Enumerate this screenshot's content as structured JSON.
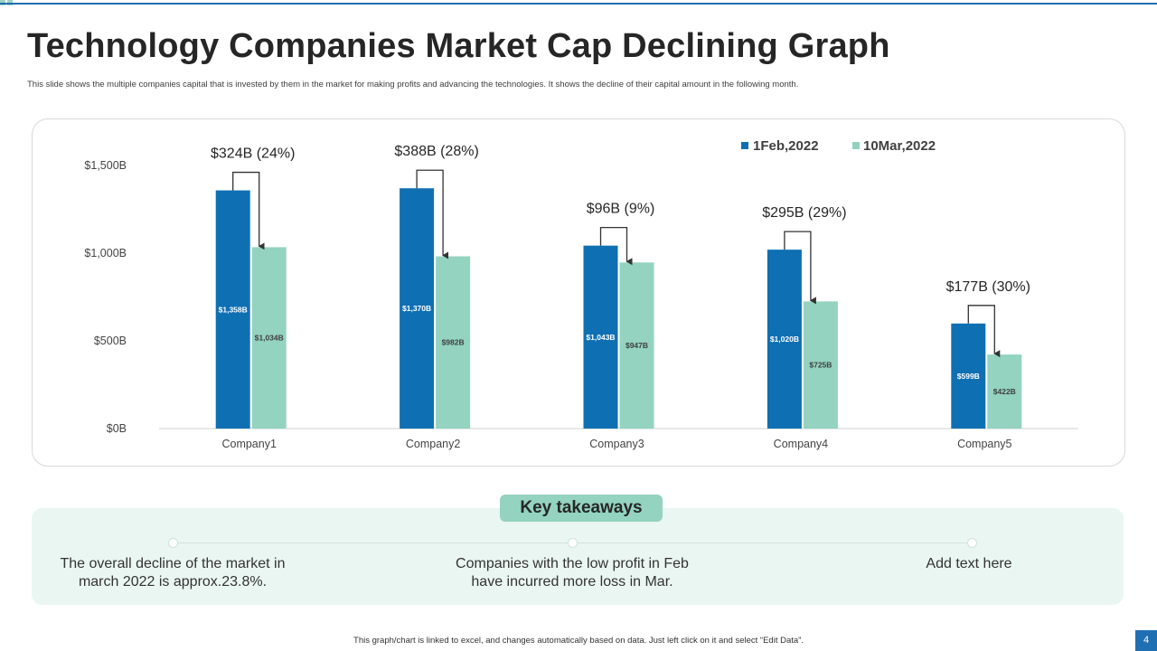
{
  "title": "Technology Companies Market Cap Declining Graph",
  "subtitle": "This slide shows the multiple companies capital that is invested by them in the market for making profits and advancing the technologies. It shows the decline of their capital amount in the following month.",
  "colors": {
    "series1": "#0f6fb3",
    "series2": "#93d3bf",
    "accent": "#1f6fb2",
    "panel": "#eaf6f1"
  },
  "chart_data": {
    "type": "bar",
    "title": "",
    "xlabel": "",
    "ylabel": "",
    "categories": [
      "Company1",
      "Company2",
      "Company3",
      "Company4",
      "Company5"
    ],
    "series": [
      {
        "name": "1Feb,2022",
        "values": [
          1358,
          1370,
          1043,
          1020,
          599
        ],
        "labels": [
          "$1,358B",
          "$1,370B",
          "$1,043B",
          "$1,020B",
          "$599B"
        ]
      },
      {
        "name": "10Mar,2022",
        "values": [
          1034,
          982,
          947,
          725,
          422
        ],
        "labels": [
          "$1,034B",
          "$982B",
          "$947B",
          "$725B",
          "$422B"
        ]
      }
    ],
    "decline_labels": [
      "$324B (24%)",
      "$388B (28%)",
      "$96B (9%)",
      "$295B (29%)",
      "$177B (30%)"
    ],
    "ylim": [
      0,
      1500
    ],
    "yticks": [
      0,
      500,
      1000,
      1500
    ],
    "ytick_labels": [
      "$0B",
      "$500B",
      "$1,000B",
      "$1,500B"
    ],
    "legend": "top-right",
    "grid": false
  },
  "takeaways": {
    "header": "Key takeaways",
    "items": [
      {
        "line1": "The overall decline of the market in",
        "line2": "march 2022 is approx.23.8%."
      },
      {
        "line1": "Companies with the low profit in Feb",
        "line2": "have incurred more loss in Mar."
      },
      {
        "line1": "Add text here",
        "line2": ""
      }
    ]
  },
  "footnote": "This graph/chart is linked to excel, and changes automatically based on data. Just left click on it and select “Edit Data”.",
  "page_number": "4"
}
